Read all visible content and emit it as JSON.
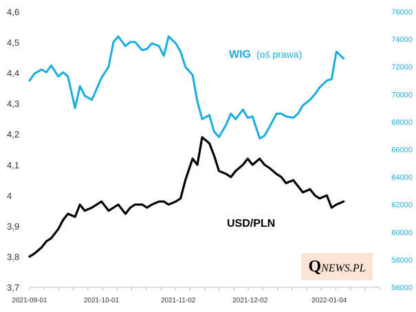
{
  "chart_data": {
    "type": "line",
    "title": "",
    "series": [
      {
        "name": "USD/PLN",
        "axis": "left",
        "color": "#000000",
        "x": [
          "2021-09-01",
          "2021-09-03",
          "2021-09-06",
          "2021-09-08",
          "2021-09-10",
          "2021-09-13",
          "2021-09-15",
          "2021-09-17",
          "2021-09-20",
          "2021-09-22",
          "2021-09-24",
          "2021-09-27",
          "2021-09-29",
          "2021-10-01",
          "2021-10-04",
          "2021-10-06",
          "2021-10-08",
          "2021-10-11",
          "2021-10-13",
          "2021-10-15",
          "2021-10-18",
          "2021-10-20",
          "2021-10-22",
          "2021-10-25",
          "2021-10-27",
          "2021-10-29",
          "2021-11-01",
          "2021-11-03",
          "2021-11-05",
          "2021-11-08",
          "2021-11-10",
          "2021-11-12",
          "2021-11-15",
          "2021-11-17",
          "2021-11-19",
          "2021-11-22",
          "2021-11-24",
          "2021-11-26",
          "2021-11-29",
          "2021-12-01",
          "2021-12-03",
          "2021-12-06",
          "2021-12-08",
          "2021-12-10",
          "2021-12-13",
          "2021-12-15",
          "2021-12-17",
          "2021-12-20",
          "2021-12-22",
          "2021-12-24",
          "2021-12-27",
          "2021-12-29",
          "2021-12-31",
          "2022-01-03",
          "2022-01-05",
          "2022-01-07",
          "2022-01-10"
        ],
        "values": [
          3.8,
          3.81,
          3.83,
          3.85,
          3.86,
          3.89,
          3.92,
          3.94,
          3.93,
          3.97,
          3.95,
          3.96,
          3.97,
          3.98,
          3.95,
          3.96,
          3.97,
          3.94,
          3.96,
          3.97,
          3.97,
          3.96,
          3.97,
          3.98,
          3.98,
          3.97,
          3.98,
          3.99,
          4.05,
          4.12,
          4.1,
          4.19,
          4.17,
          4.13,
          4.08,
          4.07,
          4.06,
          4.08,
          4.1,
          4.12,
          4.1,
          4.12,
          4.1,
          4.09,
          4.07,
          4.06,
          4.04,
          4.05,
          4.03,
          4.01,
          4.02,
          4.0,
          3.99,
          4.0,
          3.96,
          3.97,
          3.98
        ]
      },
      {
        "name": "WIG",
        "axis": "right",
        "color": "#1aace0",
        "x": [
          "2021-09-01",
          "2021-09-03",
          "2021-09-06",
          "2021-09-08",
          "2021-09-10",
          "2021-09-13",
          "2021-09-15",
          "2021-09-17",
          "2021-09-20",
          "2021-09-22",
          "2021-09-24",
          "2021-09-27",
          "2021-09-29",
          "2021-10-01",
          "2021-10-04",
          "2021-10-06",
          "2021-10-08",
          "2021-10-11",
          "2021-10-13",
          "2021-10-15",
          "2021-10-18",
          "2021-10-20",
          "2021-10-22",
          "2021-10-25",
          "2021-10-27",
          "2021-10-29",
          "2021-11-01",
          "2021-11-03",
          "2021-11-05",
          "2021-11-08",
          "2021-11-10",
          "2021-11-12",
          "2021-11-15",
          "2021-11-17",
          "2021-11-19",
          "2021-11-22",
          "2021-11-24",
          "2021-11-26",
          "2021-11-29",
          "2021-12-01",
          "2021-12-03",
          "2021-12-06",
          "2021-12-08",
          "2021-12-10",
          "2021-12-13",
          "2021-12-15",
          "2021-12-17",
          "2021-12-20",
          "2021-12-22",
          "2021-12-24",
          "2021-12-27",
          "2021-12-29",
          "2021-12-31",
          "2022-01-03",
          "2022-01-05",
          "2022-01-07",
          "2022-01-10"
        ],
        "values": [
          71000,
          71500,
          71800,
          71600,
          72100,
          71300,
          71600,
          71300,
          69000,
          70600,
          69900,
          69600,
          70400,
          71200,
          72000,
          73800,
          74200,
          73500,
          73800,
          73800,
          73200,
          73300,
          73700,
          73500,
          72800,
          74200,
          73700,
          73100,
          72000,
          71400,
          69500,
          68200,
          68500,
          67300,
          66900,
          67800,
          68600,
          68200,
          68900,
          68300,
          68400,
          66800,
          67000,
          67600,
          68600,
          68600,
          68400,
          68300,
          68600,
          69200,
          69600,
          70000,
          70500,
          71000,
          71100,
          73100,
          72600
        ]
      }
    ],
    "left_axis": {
      "ylim": [
        3.7,
        4.6
      ],
      "ticks": [
        3.7,
        3.8,
        3.9,
        4.0,
        4.1,
        4.2,
        4.3,
        4.4,
        4.5,
        4.6
      ],
      "tick_labels": [
        "3,7",
        "3,8",
        "3,9",
        "4",
        "4,1",
        "4,2",
        "4,3",
        "4,4",
        "4,5",
        "4,6"
      ]
    },
    "right_axis": {
      "ylim": [
        56000,
        76000
      ],
      "ticks": [
        56000,
        58000,
        60000,
        62000,
        64000,
        66000,
        68000,
        70000,
        72000,
        74000,
        76000
      ],
      "tick_labels": [
        "56000",
        "58000",
        "60000",
        "62000",
        "64000",
        "66000",
        "68000",
        "70000",
        "72000",
        "74000",
        "76000"
      ]
    },
    "x_axis": {
      "range": [
        "2021-09-01",
        "2022-01-25"
      ],
      "ticks": [
        "2021-09-01",
        "2021-10-01",
        "2021-11-02",
        "2021-12-02",
        "2022-01-04"
      ],
      "tick_labels": [
        "2021-09-01",
        "2021-10-01",
        "2021-11-02",
        "2021-12-02",
        "2022-01-04"
      ]
    },
    "annotations": {
      "wig_name": "WIG",
      "wig_note": "(oś prawa)",
      "usd_name": "USD/PLN"
    },
    "grid": false
  },
  "logo": {
    "q": "Q",
    "rest": "NEWS.PL"
  }
}
